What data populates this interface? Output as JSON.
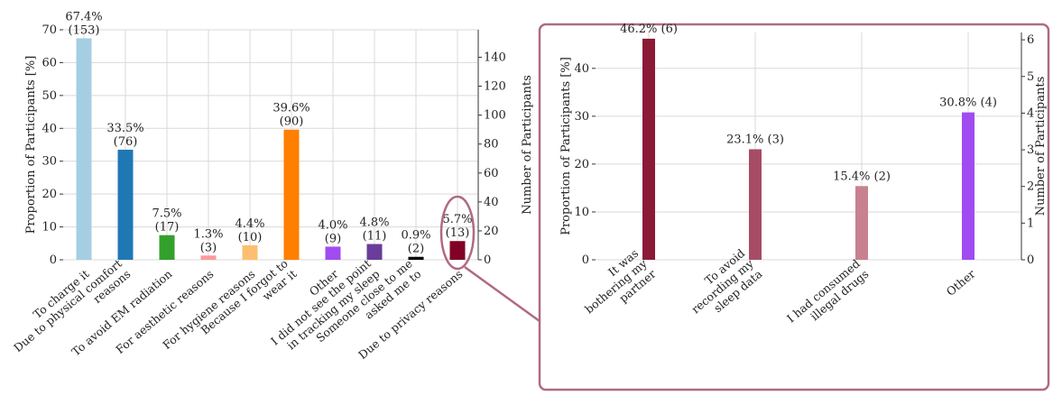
{
  "chart_data": [
    {
      "type": "bar",
      "ylabel": "Proportion of Participants [%]",
      "ylabel_right": "Number of Participants",
      "ylim": [
        0,
        70
      ],
      "yticks": [
        0,
        10,
        20,
        30,
        40,
        50,
        60,
        70
      ],
      "ylim_right": [
        0,
        159
      ],
      "yticks_right": [
        0,
        20,
        40,
        60,
        80,
        100,
        120,
        140
      ],
      "grid": true,
      "categories": [
        [
          "To charge it"
        ],
        [
          "Due to physical comfort",
          "reasons"
        ],
        [
          "To avoid EM radiation"
        ],
        [
          "For aesthetic reasons"
        ],
        [
          "For hygiene reasons"
        ],
        [
          "Because I forgot to",
          "wear it"
        ],
        [
          "Other"
        ],
        [
          "I did not see the point",
          "in tracking my sleep"
        ],
        [
          "Someone close to me",
          "asked me to"
        ],
        [
          "Due to privacy reasons"
        ]
      ],
      "values": [
        67.4,
        33.5,
        7.5,
        1.3,
        4.4,
        39.6,
        4.0,
        4.8,
        0.9,
        5.7
      ],
      "counts": [
        153,
        76,
        17,
        3,
        10,
        90,
        9,
        11,
        2,
        13
      ],
      "data_labels": [
        [
          "67.4%",
          "(153)"
        ],
        [
          "33.5%",
          "(76)"
        ],
        [
          "7.5%",
          "(17)"
        ],
        [
          "1.3%",
          "(3)"
        ],
        [
          "4.4%",
          "(10)"
        ],
        [
          "39.6%",
          "(90)"
        ],
        [
          "4.0%",
          "(9)"
        ],
        [
          "4.8%",
          "(11)"
        ],
        [
          "0.9%",
          "(2)"
        ],
        [
          "5.7%",
          "(13)"
        ]
      ],
      "colors": [
        "#a6cee3",
        "#1f78b4",
        "#33a02c",
        "#fb9a99",
        "#fdbf6f",
        "#ff7f00",
        "#a04cf0",
        "#6a3d9a",
        "#000000",
        "#800026"
      ],
      "highlighted_category": "Due to privacy reasons"
    },
    {
      "type": "bar",
      "ylabel": "Proportion of Participants [%]",
      "ylabel_right": "Number of Participants",
      "ylim": [
        0,
        47.5
      ],
      "yticks": [
        0,
        10,
        20,
        30,
        40
      ],
      "ylim_right": [
        0,
        6.2
      ],
      "yticks_right": [
        0,
        1,
        2,
        3,
        4,
        5,
        6
      ],
      "grid": true,
      "categories": [
        [
          "It was",
          "bothering my",
          "partner"
        ],
        [
          "To avoid",
          "recording my",
          "sleep data"
        ],
        [
          "I had consumed",
          "illegal drugs"
        ],
        [
          "Other"
        ]
      ],
      "values": [
        46.2,
        23.1,
        15.4,
        30.8
      ],
      "counts": [
        6,
        3,
        2,
        4
      ],
      "data_labels": [
        "46.2% (6)",
        "23.1% (3)",
        "15.4% (2)",
        "30.8% (4)"
      ],
      "colors": [
        "#8b1a37",
        "#a84c66",
        "#c8828f",
        "#a04cf0"
      ]
    }
  ],
  "callout": {
    "border_color": "#b06a82"
  }
}
